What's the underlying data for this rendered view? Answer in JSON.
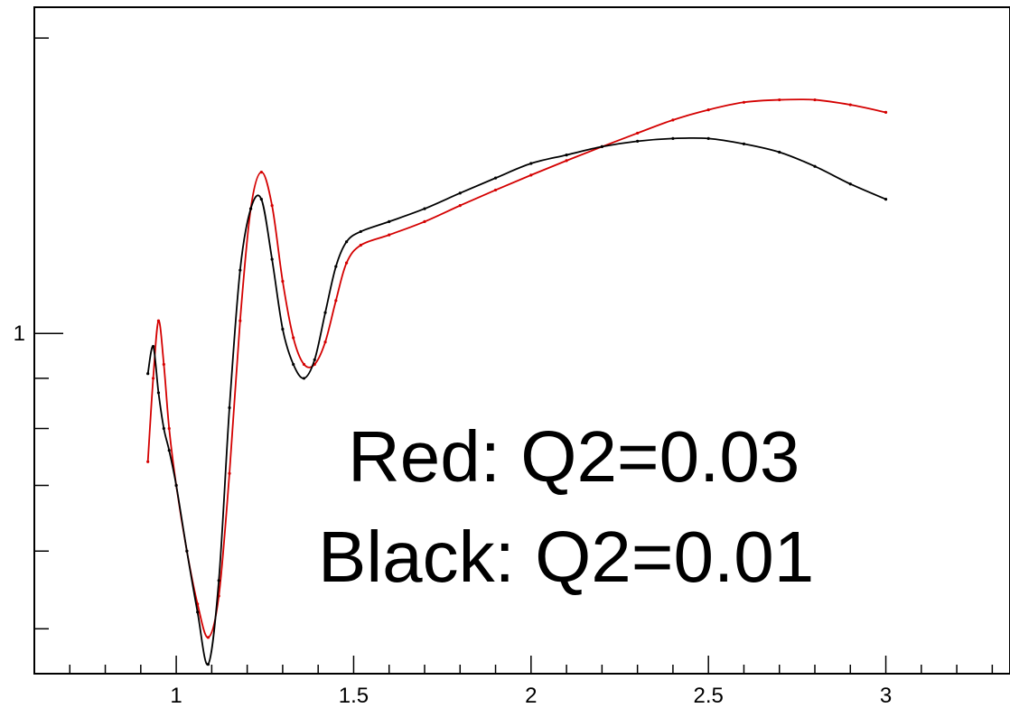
{
  "chart_data": {
    "type": "line",
    "title": "",
    "xlabel": "",
    "ylabel": "",
    "xlim": [
      0.6,
      3.35
    ],
    "ylim": [
      0.45,
      2.15
    ],
    "ylog": true,
    "grid": false,
    "x_ticks": [
      {
        "value": 1,
        "label": "1"
      },
      {
        "value": 1.5,
        "label": "1.5"
      },
      {
        "value": 2,
        "label": "2"
      },
      {
        "value": 2.5,
        "label": "2.5"
      },
      {
        "value": 3,
        "label": "3"
      }
    ],
    "y_ticks": [
      {
        "value": 1,
        "label": "1"
      }
    ],
    "annotations": [
      "Red: Q2=0.03",
      "Black: Q2=0.01"
    ],
    "series": [
      {
        "color": "#d40000",
        "x": [
          0.92,
          0.935,
          0.95,
          0.965,
          0.98,
          1.0,
          1.03,
          1.06,
          1.09,
          1.12,
          1.15,
          1.18,
          1.21,
          1.24,
          1.27,
          1.3,
          1.33,
          1.36,
          1.39,
          1.42,
          1.45,
          1.48,
          1.52,
          1.6,
          1.7,
          1.8,
          1.9,
          2.0,
          2.1,
          2.2,
          2.3,
          2.4,
          2.5,
          2.6,
          2.7,
          2.8,
          2.9,
          3.0
        ],
        "y": [
          0.74,
          0.9,
          1.03,
          0.93,
          0.8,
          0.7,
          0.6,
          0.53,
          0.49,
          0.54,
          0.72,
          1.03,
          1.34,
          1.46,
          1.35,
          1.13,
          0.99,
          0.93,
          0.93,
          0.98,
          1.08,
          1.18,
          1.23,
          1.26,
          1.3,
          1.35,
          1.4,
          1.45,
          1.5,
          1.55,
          1.6,
          1.65,
          1.69,
          1.72,
          1.73,
          1.73,
          1.71,
          1.68
        ]
      },
      {
        "color": "#000000",
        "x": [
          0.92,
          0.935,
          0.95,
          0.965,
          0.98,
          1.0,
          1.03,
          1.06,
          1.09,
          1.12,
          1.15,
          1.18,
          1.21,
          1.24,
          1.27,
          1.3,
          1.33,
          1.36,
          1.39,
          1.42,
          1.45,
          1.48,
          1.52,
          1.6,
          1.7,
          1.8,
          1.9,
          2.0,
          2.1,
          2.2,
          2.3,
          2.4,
          2.5,
          2.6,
          2.7,
          2.8,
          2.9,
          3.0
        ],
        "y": [
          0.91,
          0.97,
          0.87,
          0.8,
          0.76,
          0.7,
          0.6,
          0.52,
          0.46,
          0.56,
          0.84,
          1.16,
          1.34,
          1.37,
          1.19,
          1.01,
          0.93,
          0.9,
          0.94,
          1.05,
          1.17,
          1.24,
          1.27,
          1.3,
          1.34,
          1.39,
          1.44,
          1.49,
          1.52,
          1.55,
          1.57,
          1.58,
          1.58,
          1.56,
          1.53,
          1.48,
          1.42,
          1.37
        ]
      }
    ]
  }
}
